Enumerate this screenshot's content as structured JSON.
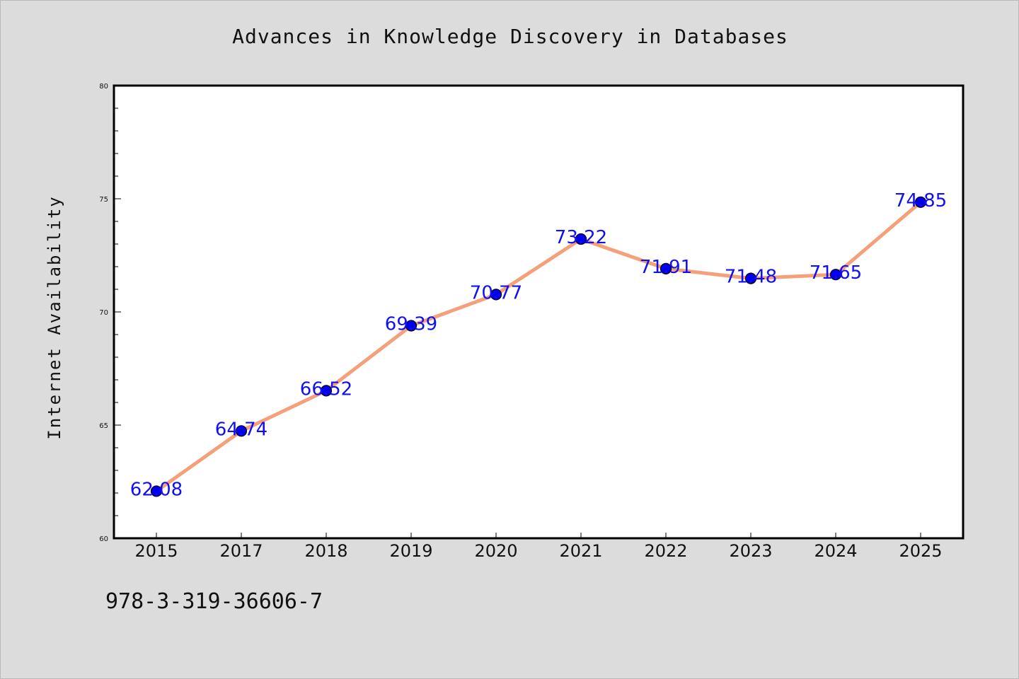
{
  "chart_data": {
    "type": "line",
    "title": "Advances in Knowledge Discovery in Databases",
    "xlabel": "",
    "ylabel": "Internet Availability",
    "categories": [
      "2015",
      "2017",
      "2018",
      "2019",
      "2020",
      "2021",
      "2022",
      "2023",
      "2024",
      "2025"
    ],
    "values": [
      62.08,
      64.74,
      66.52,
      69.39,
      70.77,
      73.22,
      71.91,
      71.48,
      71.65,
      74.85
    ],
    "data_labels": [
      "62.08",
      "64.74",
      "66.52",
      "69.39",
      "70.77",
      "73.22",
      "71.91",
      "71.48",
      "71.65",
      "74.85"
    ],
    "ylim": [
      60,
      80
    ],
    "y_ticks": [
      "60",
      "65",
      "70",
      "75",
      "80"
    ],
    "grid": false,
    "line_color": "#f4a07a",
    "marker_color": "#0000ee",
    "label_color": "#1010f0",
    "background": "#dcdcdc",
    "plot_background": "#ffffff"
  },
  "footnote": "978-3-319-36606-7"
}
